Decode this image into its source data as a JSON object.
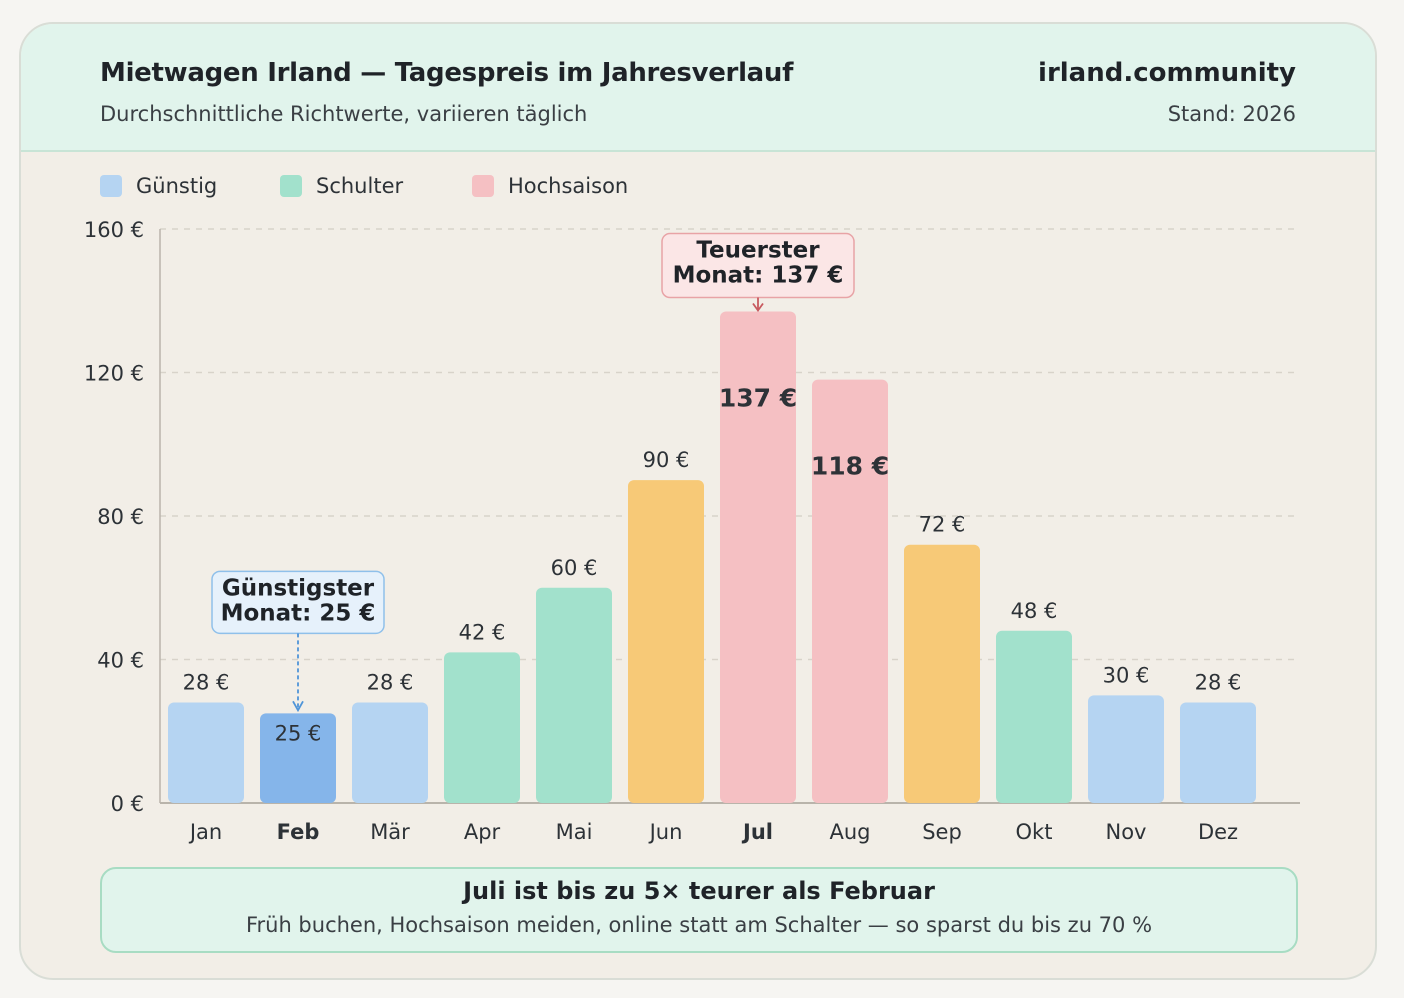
{
  "header": {
    "title": "Mietwagen Irland — Tagespreis im Jahresverlauf",
    "subtitle": "Durchschnittliche Richtwerte, variieren täglich",
    "brand": "irland.community",
    "stand": "Stand: 2026"
  },
  "legend": [
    {
      "label": "Günstig",
      "color": "#b5d4f2"
    },
    {
      "label": "Schulter",
      "color": "#a2e1cc"
    },
    {
      "label": "Hochsaison",
      "color": "#f5c0c3"
    }
  ],
  "colors": {
    "guenstig": "#b5d4f2",
    "guenstig_highlight": "#85b5ea",
    "schulter": "#a2e1cc",
    "peak_orange": "#f7c977",
    "hochsaison": "#f5c0c3",
    "callout_low_bg": "#e6f1fb",
    "callout_low_border": "#8fc0ea",
    "callout_high_bg": "#fbe6e6",
    "callout_high_border": "#e8a3a6"
  },
  "chart_data": {
    "type": "bar",
    "categories": [
      "Jan",
      "Feb",
      "Mär",
      "Apr",
      "Mai",
      "Jun",
      "Jul",
      "Aug",
      "Sep",
      "Okt",
      "Nov",
      "Dez"
    ],
    "values": [
      28,
      25,
      28,
      42,
      60,
      90,
      137,
      118,
      72,
      48,
      30,
      28
    ],
    "value_labels": [
      "28 €",
      "25 €",
      "28 €",
      "42 €",
      "60 €",
      "90 €",
      "137 €",
      "118 €",
      "72 €",
      "48 €",
      "30 €",
      "28 €"
    ],
    "bar_colors": [
      "#b5d4f2",
      "#85b5ea",
      "#b5d4f2",
      "#a2e1cc",
      "#a2e1cc",
      "#f7c977",
      "#f5c0c3",
      "#f5c0c3",
      "#f7c977",
      "#a2e1cc",
      "#b5d4f2",
      "#b5d4f2"
    ],
    "ylim": [
      0,
      160
    ],
    "yticks": [
      0,
      40,
      80,
      120,
      160
    ],
    "ytick_labels": [
      "0 €",
      "40 €",
      "80 €",
      "120 €",
      "160 €"
    ],
    "grid": true,
    "legend_position": "top-left",
    "annotations": [
      {
        "category": "Feb",
        "lines": [
          "Günstigster",
          "Monat: 25 €"
        ],
        "type": "low"
      },
      {
        "category": "Jul",
        "lines": [
          "Teuerster",
          "Monat: 137 €"
        ],
        "type": "high"
      }
    ]
  },
  "footer": {
    "title": "Juli ist bis zu 5× teurer als Februar",
    "text": "Früh buchen, Hochsaison meiden, online statt am Schalter — so sparst du bis zu 70 %"
  }
}
